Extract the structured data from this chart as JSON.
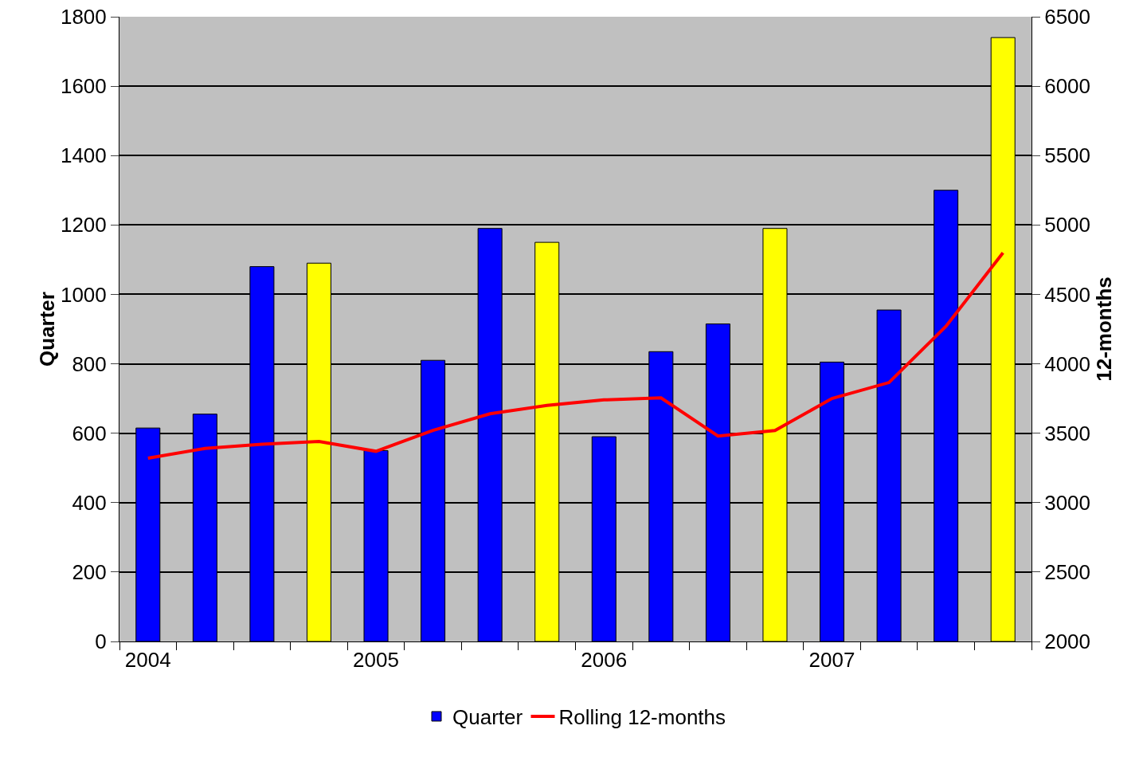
{
  "chart_data": {
    "type": "bar",
    "categories": [
      "2004",
      null,
      null,
      null,
      "2005",
      null,
      null,
      null,
      "2006",
      null,
      null,
      null,
      "2007",
      null,
      null,
      null
    ],
    "ylabel": "Quarter",
    "y2label": "12-months",
    "series": [
      {
        "name": "Quarter",
        "colors": [
          "#0000ff",
          "#0000ff",
          "#0000ff",
          "#ffff00",
          "#0000ff",
          "#0000ff",
          "#0000ff",
          "#ffff00",
          "#0000ff",
          "#0000ff",
          "#0000ff",
          "#ffff00",
          "#0000ff",
          "#0000ff",
          "#0000ff",
          "#ffff00"
        ],
        "values": [
          615,
          655,
          1080,
          1090,
          550,
          810,
          1190,
          1150,
          590,
          835,
          915,
          1190,
          805,
          955,
          1300,
          1740
        ]
      },
      {
        "name": "Rolling 12-months",
        "type": "line",
        "axis": "y2",
        "color": "#ff0000",
        "values": [
          3320,
          3390,
          3420,
          3440,
          3370,
          3520,
          3640,
          3700,
          3740,
          3755,
          3480,
          3520,
          3750,
          3865,
          4270,
          4800
        ]
      }
    ],
    "ylim": [
      0,
      1800
    ],
    "yticks": [
      0,
      200,
      400,
      600,
      800,
      1000,
      1200,
      1400,
      1600,
      1800
    ],
    "y2lim": [
      2000,
      6500
    ],
    "y2ticks": [
      2000,
      2500,
      3000,
      3500,
      4000,
      4500,
      5000,
      5500,
      6000,
      6500
    ],
    "grid": "y",
    "legend": "bottom",
    "marker": "none",
    "line_style": "solid"
  }
}
